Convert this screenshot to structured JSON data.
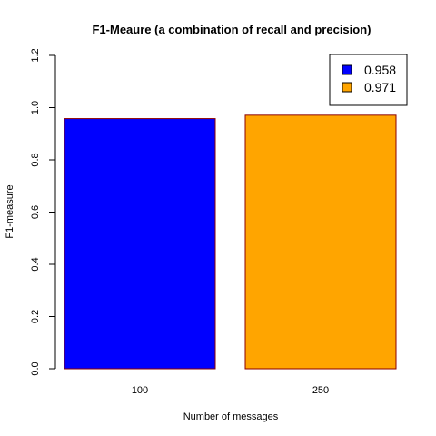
{
  "chart_data": {
    "type": "bar",
    "title": "F1-Meaure (a combination of recall and precision)",
    "xlabel": "Number of messages",
    "ylabel": "F1-measure",
    "categories": [
      "100",
      "250"
    ],
    "values": [
      0.958,
      0.971
    ],
    "ylim": [
      0,
      1.2
    ],
    "yticks": [
      "0.0",
      "0.2",
      "0.4",
      "0.6",
      "0.8",
      "1.0",
      "1.2"
    ],
    "bar_colors": [
      "#0000ff",
      "#ffa500"
    ],
    "bar_border_color": "#8b0000",
    "grid": false,
    "legend": {
      "position": "top-right",
      "entries": [
        {
          "label": "0.958",
          "color": "#0000ff"
        },
        {
          "label": "0.971",
          "color": "#ffa500"
        }
      ]
    }
  }
}
